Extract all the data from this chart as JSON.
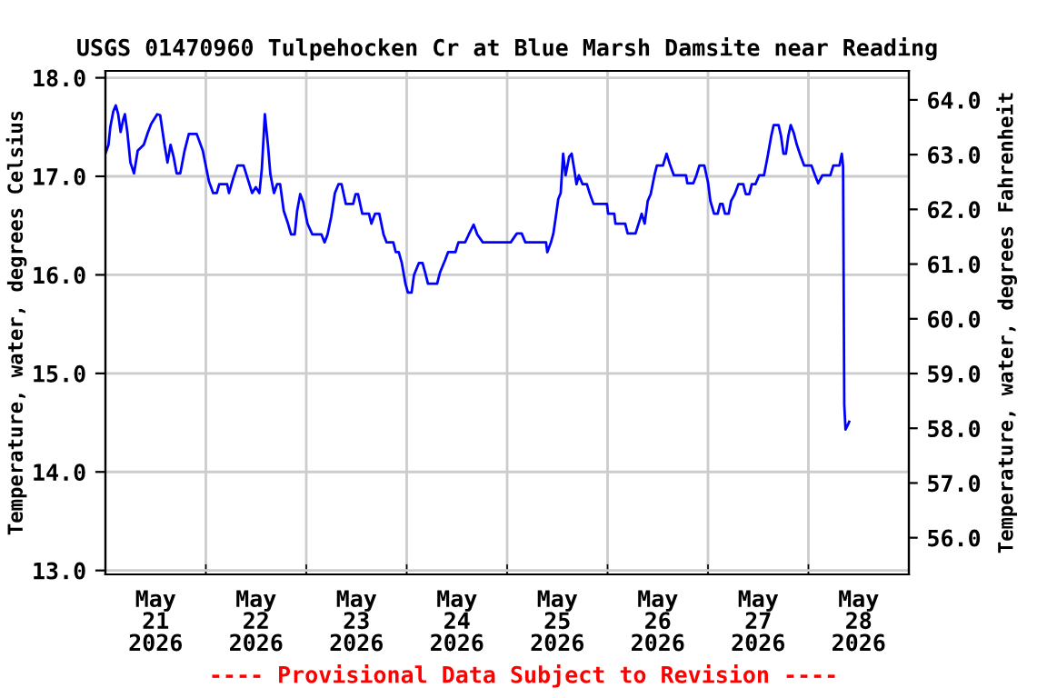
{
  "chart_data": {
    "type": "line",
    "title": "USGS 01470960 Tulpehocken Cr at Blue Marsh Damsite near Reading",
    "ylabel": "Temperature, water, degrees Celsius",
    "y2label": "Temperature, water, degrees Fahrenheit",
    "annotations": [
      "---- Provisional Data Subject to Revision ----"
    ],
    "series": [
      {
        "color": "#0000ff",
        "x": [
          "2026-05-21T00:00",
          "2026-05-21T00:44",
          "2026-05-21T01:10",
          "2026-05-21T01:53",
          "2026-05-21T02:28",
          "2026-05-21T03:03",
          "2026-05-21T03:38",
          "2026-05-21T04:13",
          "2026-05-21T04:39",
          "2026-05-21T05:14",
          "2026-05-21T05:58",
          "2026-05-21T06:50",
          "2026-05-21T07:43",
          "2026-05-21T09:10",
          "2026-05-21T10:11",
          "2026-05-21T10:55",
          "2026-05-21T12:22",
          "2026-05-21T13:05",
          "2026-05-21T14:07",
          "2026-05-21T14:50",
          "2026-05-21T15:34",
          "2026-05-21T16:17",
          "2026-05-21T17:01",
          "2026-05-21T17:53",
          "2026-05-21T18:55",
          "2026-05-21T19:56",
          "2026-05-21T21:49",
          "2026-05-21T23:16",
          "2026-05-22T00:44",
          "2026-05-22T01:45",
          "2026-05-22T02:37",
          "2026-05-22T03:12",
          "2026-05-22T05:05",
          "2026-05-22T05:32",
          "2026-05-22T06:33",
          "2026-05-22T07:34",
          "2026-05-22T09:01",
          "2026-05-22T10:11",
          "2026-05-22T11:03",
          "2026-05-22T11:56",
          "2026-05-22T12:48",
          "2026-05-22T13:23",
          "2026-05-22T14:06",
          "2026-05-22T14:50",
          "2026-05-22T15:25",
          "2026-05-22T16:17",
          "2026-05-22T17:01",
          "2026-05-22T17:45",
          "2026-05-22T18:37",
          "2026-05-22T19:38",
          "2026-05-22T20:22",
          "2026-05-22T21:14",
          "2026-05-22T21:49",
          "2026-05-22T22:33",
          "2026-05-22T23:16",
          "2026-05-23T00:17",
          "2026-05-23T01:27",
          "2026-05-23T03:38",
          "2026-05-23T04:22",
          "2026-05-23T05:05",
          "2026-05-23T05:58",
          "2026-05-23T06:50",
          "2026-05-23T07:42",
          "2026-05-23T08:26",
          "2026-05-23T09:27",
          "2026-05-23T11:12",
          "2026-05-23T11:47",
          "2026-05-23T12:22",
          "2026-05-23T13:23",
          "2026-05-23T14:59",
          "2026-05-23T15:34",
          "2026-05-23T16:26",
          "2026-05-23T17:27",
          "2026-05-23T18:28",
          "2026-05-23T19:12",
          "2026-05-23T20:48",
          "2026-05-23T21:23",
          "2026-05-23T22:06",
          "2026-05-23T22:50",
          "2026-05-23T23:42",
          "2026-05-24T00:17",
          "2026-05-24T01:10",
          "2026-05-24T01:45",
          "2026-05-24T02:54",
          "2026-05-24T03:47",
          "2026-05-24T04:22",
          "2026-05-24T05:05",
          "2026-05-24T07:16",
          "2026-05-24T08:00",
          "2026-05-24T09:10",
          "2026-05-24T09:53",
          "2026-05-24T11:38",
          "2026-05-24T12:22",
          "2026-05-24T13:58",
          "2026-05-24T14:50",
          "2026-05-24T16:00",
          "2026-05-24T16:52",
          "2026-05-24T18:11",
          "2026-05-25T00:52",
          "2026-05-25T02:19",
          "2026-05-25T03:29",
          "2026-05-25T04:21",
          "2026-05-25T09:18",
          "2026-05-25T09:36",
          "2026-05-25T10:28",
          "2026-05-25T11:03",
          "2026-05-25T11:38",
          "2026-05-25T12:13",
          "2026-05-25T12:48",
          "2026-05-25T13:23",
          "2026-05-25T13:58",
          "2026-05-25T14:50",
          "2026-05-25T15:25",
          "2026-05-25T16:00",
          "2026-05-25T16:35",
          "2026-05-25T17:09",
          "2026-05-25T18:02",
          "2026-05-25T19:03",
          "2026-05-25T19:47",
          "2026-05-25T20:39",
          "2026-05-25T23:51",
          "2026-05-26T00:08",
          "2026-05-26T01:36",
          "2026-05-26T01:53",
          "2026-05-26T04:13",
          "2026-05-26T04:48",
          "2026-05-26T06:41",
          "2026-05-26T07:25",
          "2026-05-26T08:09",
          "2026-05-26T08:52",
          "2026-05-26T09:36",
          "2026-05-26T10:19",
          "2026-05-26T11:12",
          "2026-05-26T11:47",
          "2026-05-26T13:14",
          "2026-05-26T14:06",
          "2026-05-26T14:59",
          "2026-05-26T15:51",
          "2026-05-26T18:45",
          "2026-05-26T19:03",
          "2026-05-26T20:30",
          "2026-05-26T21:14",
          "2026-05-26T21:57",
          "2026-05-26T23:07",
          "2026-05-27T00:00",
          "2026-05-27T00:34",
          "2026-05-27T01:27",
          "2026-05-27T02:19",
          "2026-05-27T02:54",
          "2026-05-27T03:29",
          "2026-05-27T04:04",
          "2026-05-27T04:56",
          "2026-05-27T05:31",
          "2026-05-27T06:24",
          "2026-05-27T07:16",
          "2026-05-27T08:26",
          "2026-05-27T09:01",
          "2026-05-27T09:53",
          "2026-05-27T10:28",
          "2026-05-27T11:20",
          "2026-05-27T12:13",
          "2026-05-27T13:23",
          "2026-05-27T14:15",
          "2026-05-27T15:07",
          "2026-05-27T15:42",
          "2026-05-27T16:52",
          "2026-05-27T17:27",
          "2026-05-27T18:02",
          "2026-05-27T18:37",
          "2026-05-27T19:12",
          "2026-05-27T19:46",
          "2026-05-27T20:30",
          "2026-05-27T21:14",
          "2026-05-27T22:06",
          "2026-05-27T22:58",
          "2026-05-28T00:43",
          "2026-05-28T01:35",
          "2026-05-28T02:19",
          "2026-05-28T03:20",
          "2026-05-28T05:14",
          "2026-05-28T05:57",
          "2026-05-28T07:25",
          "2026-05-28T07:59",
          "2026-05-28T08:17",
          "2026-05-28T08:34",
          "2026-05-28T08:52",
          "2026-05-28T09:27",
          "2026-05-28T09:44"
        ],
        "values": [
          17.23,
          17.32,
          17.5,
          17.66,
          17.72,
          17.63,
          17.45,
          17.57,
          17.63,
          17.45,
          17.14,
          17.03,
          17.26,
          17.32,
          17.45,
          17.53,
          17.63,
          17.62,
          17.32,
          17.14,
          17.32,
          17.2,
          17.03,
          17.03,
          17.26,
          17.43,
          17.43,
          17.26,
          16.95,
          16.83,
          16.83,
          16.92,
          16.92,
          16.83,
          16.98,
          17.11,
          17.11,
          16.95,
          16.83,
          16.89,
          16.83,
          17.08,
          17.63,
          17.32,
          17.02,
          16.83,
          16.92,
          16.92,
          16.65,
          16.52,
          16.41,
          16.41,
          16.65,
          16.82,
          16.74,
          16.52,
          16.41,
          16.41,
          16.33,
          16.41,
          16.59,
          16.83,
          16.92,
          16.92,
          16.72,
          16.72,
          16.82,
          16.82,
          16.62,
          16.62,
          16.52,
          16.62,
          16.62,
          16.41,
          16.33,
          16.33,
          16.23,
          16.23,
          16.12,
          15.91,
          15.82,
          15.82,
          16.0,
          16.12,
          16.12,
          16.03,
          15.91,
          15.91,
          16.03,
          16.15,
          16.23,
          16.23,
          16.33,
          16.33,
          16.41,
          16.51,
          16.41,
          16.33,
          16.33,
          16.42,
          16.42,
          16.33,
          16.33,
          16.23,
          16.33,
          16.42,
          16.59,
          16.77,
          16.83,
          17.23,
          17.01,
          17.2,
          17.23,
          17.08,
          16.92,
          17.01,
          16.92,
          16.92,
          16.82,
          16.72,
          16.72,
          16.62,
          16.62,
          16.52,
          16.52,
          16.42,
          16.42,
          16.52,
          16.62,
          16.52,
          16.75,
          16.82,
          17.01,
          17.11,
          17.11,
          17.23,
          17.11,
          17.01,
          17.01,
          16.93,
          16.93,
          17.01,
          17.11,
          17.11,
          16.94,
          16.75,
          16.62,
          16.62,
          16.72,
          16.72,
          16.62,
          16.62,
          16.75,
          16.82,
          16.92,
          16.92,
          16.82,
          16.82,
          16.92,
          16.92,
          17.01,
          17.01,
          17.2,
          17.41,
          17.52,
          17.52,
          17.41,
          17.23,
          17.23,
          17.41,
          17.52,
          17.44,
          17.32,
          17.21,
          17.11,
          17.11,
          17.01,
          16.93,
          17.01,
          17.01,
          17.11,
          17.11,
          17.23,
          17.1,
          14.68,
          14.43,
          14.48,
          14.51
        ]
      }
    ],
    "xlim": [
      "2026-05-21T00:00",
      "2026-05-29T00:00"
    ],
    "xticks": [
      {
        "value": "2026-05-21T12:00",
        "label": "May\n21\n2026"
      },
      {
        "value": "2026-05-22T12:00",
        "label": "May\n22\n2026"
      },
      {
        "value": "2026-05-23T12:00",
        "label": "May\n23\n2026"
      },
      {
        "value": "2026-05-24T12:00",
        "label": "May\n24\n2026"
      },
      {
        "value": "2026-05-25T12:00",
        "label": "May\n25\n2026"
      },
      {
        "value": "2026-05-26T12:00",
        "label": "May\n26\n2026"
      },
      {
        "value": "2026-05-27T12:00",
        "label": "May\n27\n2026"
      },
      {
        "value": "2026-05-28T12:00",
        "label": "May\n28\n2026"
      },
      {
        "value": "2026-05-22T00:00",
        "label": null
      },
      {
        "value": "2026-05-23T00:00",
        "label": null
      },
      {
        "value": "2026-05-24T00:00",
        "label": null
      },
      {
        "value": "2026-05-25T00:00",
        "label": null
      },
      {
        "value": "2026-05-26T00:00",
        "label": null
      },
      {
        "value": "2026-05-27T00:00",
        "label": null
      },
      {
        "value": "2026-05-28T00:00",
        "label": null
      }
    ],
    "ylim": [
      12.96,
      18.07
    ],
    "yticks": [
      {
        "value": 13,
        "label": "13.0"
      },
      {
        "value": 14,
        "label": "14.0"
      },
      {
        "value": 15,
        "label": "15.0"
      },
      {
        "value": 16,
        "label": "16.0"
      },
      {
        "value": 17,
        "label": "17.0"
      },
      {
        "value": 18,
        "label": "18.0"
      }
    ],
    "y2lim": [
      55.33,
      64.53
    ],
    "y2ticks": [
      {
        "value": 56,
        "label": "56.0"
      },
      {
        "value": 57,
        "label": "57.0"
      },
      {
        "value": 58,
        "label": "58.0"
      },
      {
        "value": 59,
        "label": "59.0"
      },
      {
        "value": 60,
        "label": "60.0"
      },
      {
        "value": 61,
        "label": "61.0"
      },
      {
        "value": 62,
        "label": "62.0"
      },
      {
        "value": 63,
        "label": "63.0"
      },
      {
        "value": 64,
        "label": "64.0"
      }
    ],
    "grid": true,
    "legend": false,
    "marker": "none",
    "line_style": "solid"
  }
}
